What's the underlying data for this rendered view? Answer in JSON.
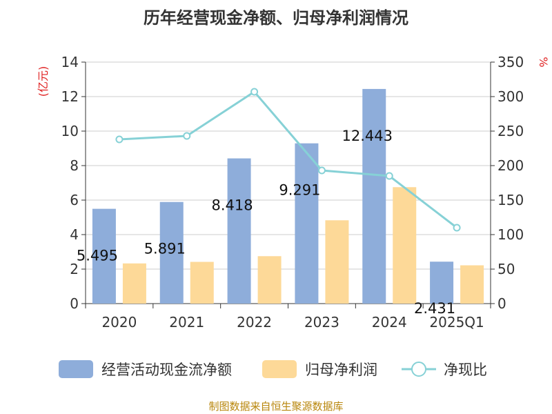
{
  "chart_data": {
    "type": "bar",
    "title": "历年经营现金净额、归母净利润情况",
    "source": "制图数据来自恒生聚源数据库",
    "categories": [
      "2020",
      "2021",
      "2022",
      "2023",
      "2024",
      "2025Q1"
    ],
    "left_axis": {
      "unit_label": "(亿元)",
      "ylim": [
        0,
        14
      ],
      "ticks": [
        "0",
        "2",
        "4",
        "6",
        "8",
        "10",
        "12",
        "14"
      ]
    },
    "right_axis": {
      "unit_label": "%",
      "ylim": [
        0,
        350
      ],
      "ticks": [
        "0",
        "50",
        "100",
        "150",
        "200",
        "250",
        "300",
        "350"
      ]
    },
    "series": [
      {
        "name": "经营活动现金流净额",
        "type": "bar",
        "axis": "left",
        "color": "#8EADDA",
        "values": [
          5.495,
          5.891,
          8.418,
          9.291,
          12.443,
          2.431
        ],
        "labels": [
          "5.495",
          "5.891",
          "8.418",
          "9.291",
          "12.443",
          "2.431"
        ]
      },
      {
        "name": "归母净利润",
        "type": "bar",
        "axis": "left",
        "color": "#FDD998",
        "values": [
          2.33,
          2.42,
          2.75,
          4.83,
          6.75,
          2.22
        ]
      },
      {
        "name": "净现比",
        "type": "line",
        "axis": "right",
        "color": "#86D1D6",
        "values": [
          238,
          243,
          307,
          193,
          185,
          110
        ]
      }
    ],
    "grid": true,
    "legend_position": "bottom",
    "left_unit_color": "#e02020",
    "right_unit_color": "#e02020"
  }
}
